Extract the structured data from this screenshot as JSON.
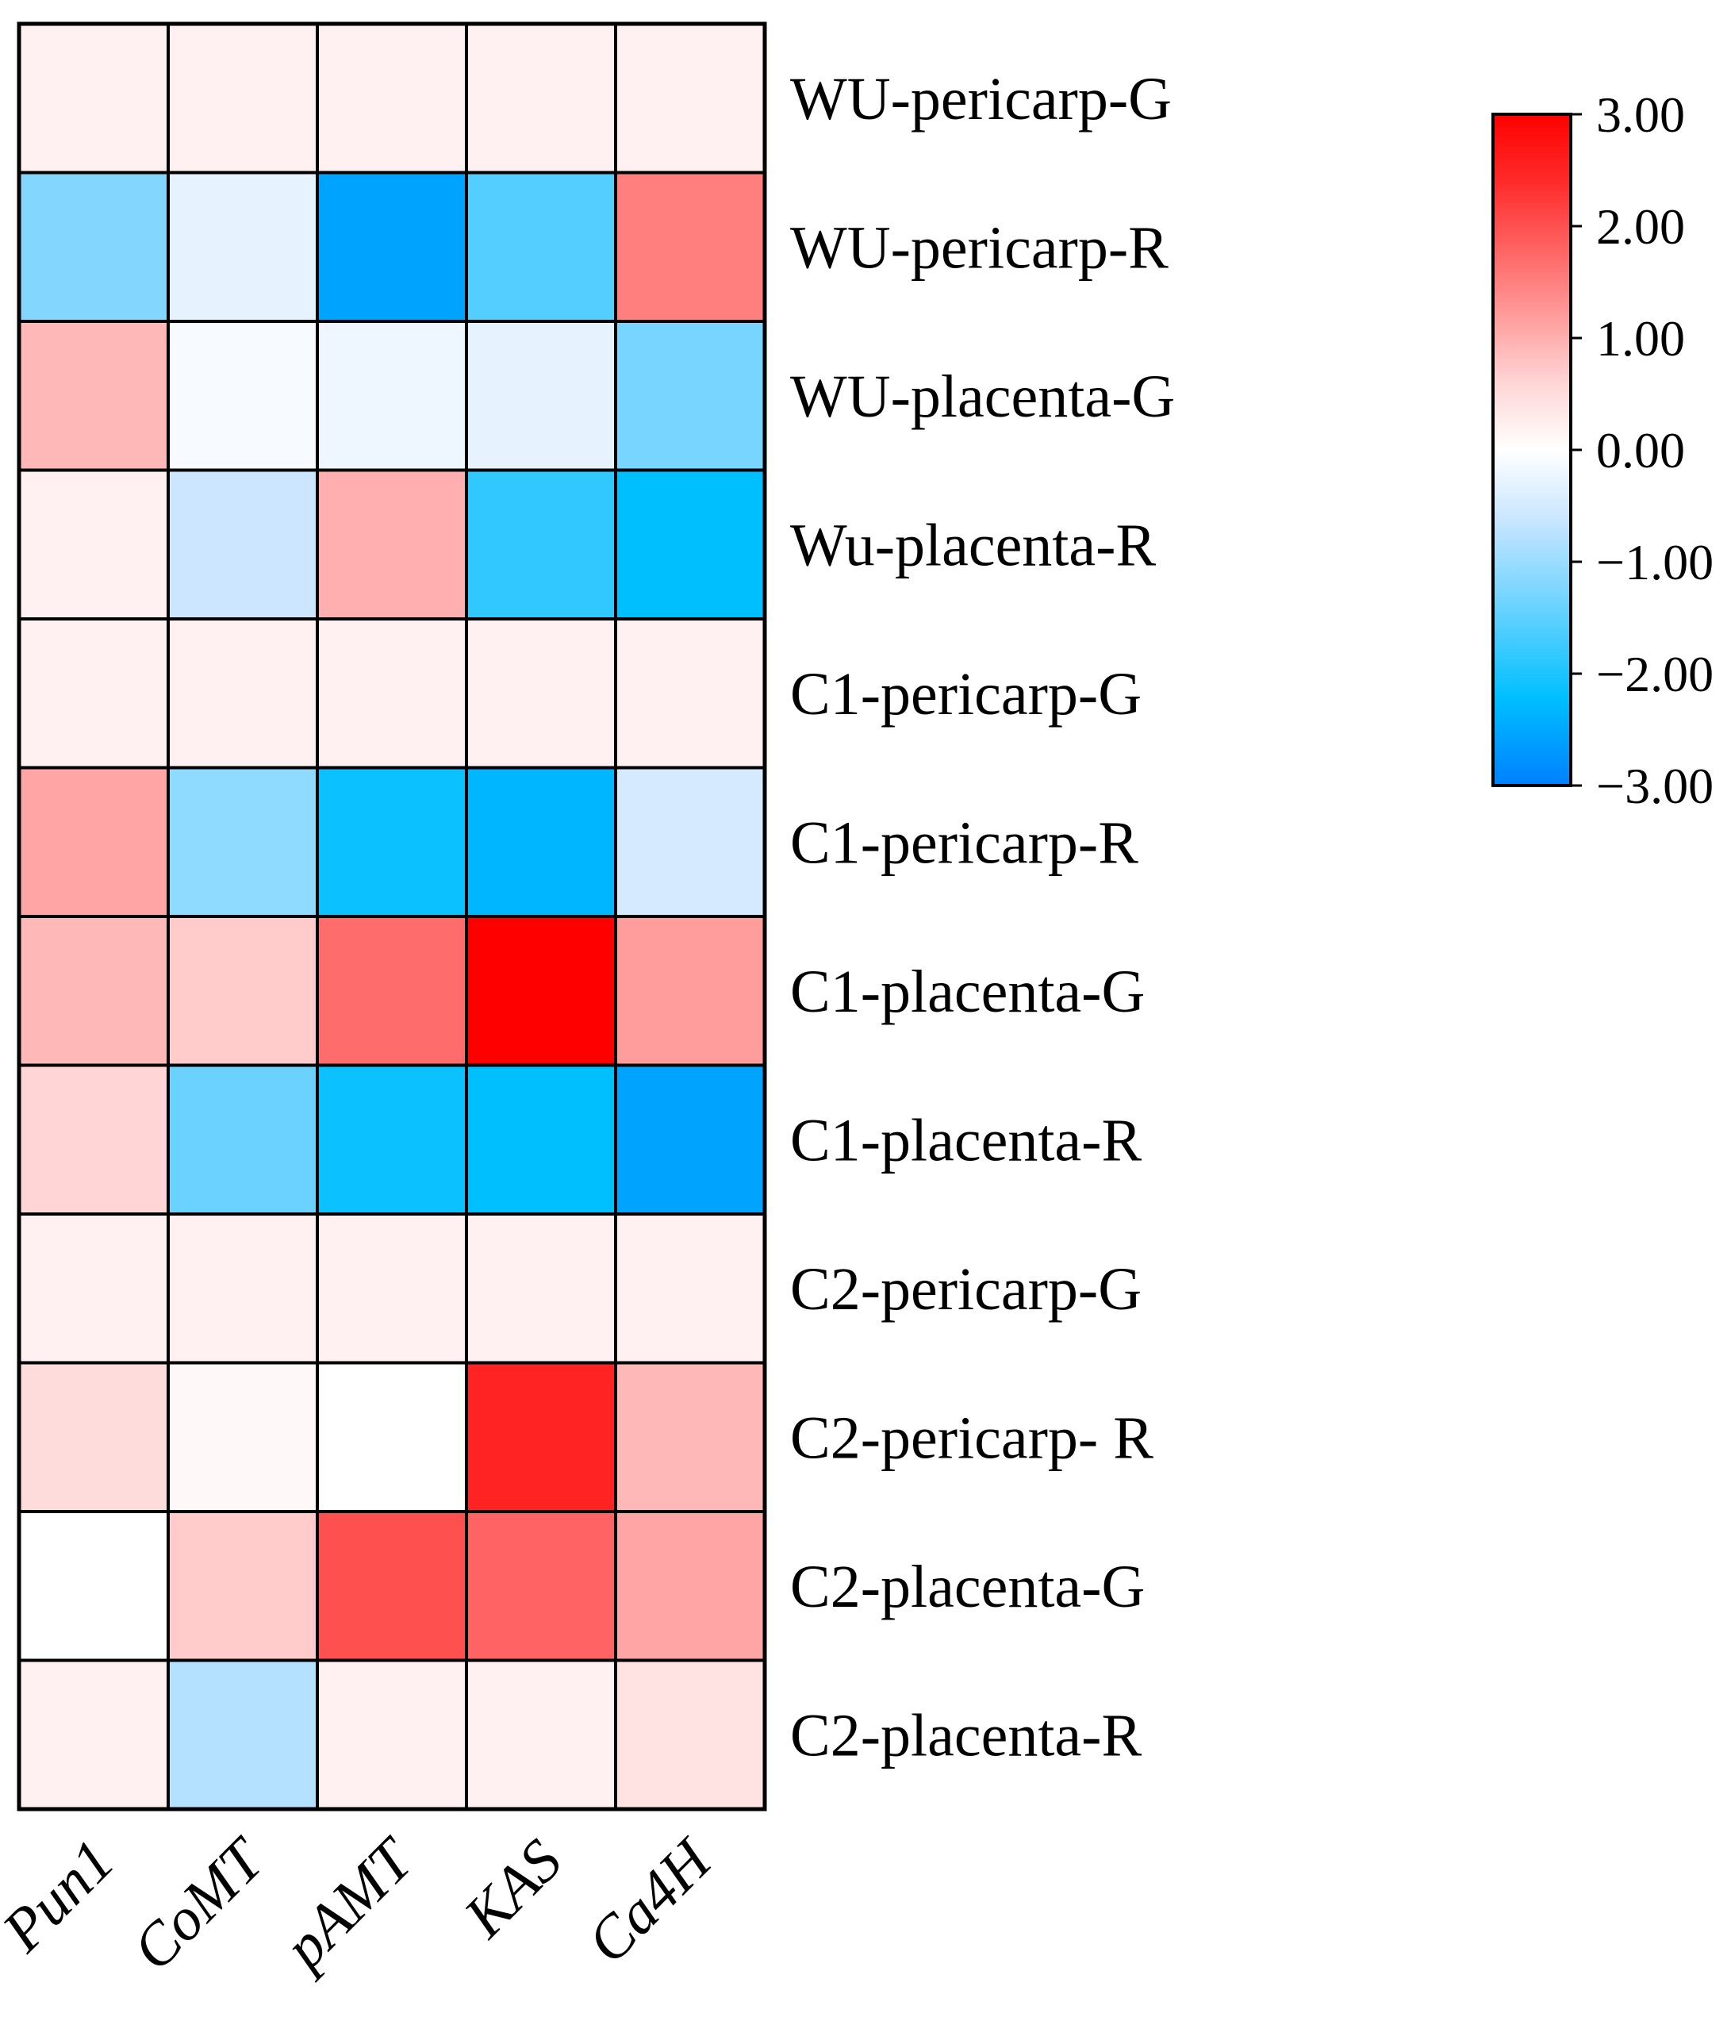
{
  "chart_data": {
    "type": "heatmap",
    "title": "",
    "columns": [
      "Pun1",
      "CoMT",
      "pAMT",
      "KAS",
      "Ca4H"
    ],
    "rows": [
      "WU-pericarp-G",
      "WU-pericarp-R",
      "WU-placenta-G",
      "Wu-placenta-R",
      "C1-pericarp-G",
      "C1-pericarp-R",
      "C1-placenta-G",
      "C1-placenta-R",
      "C2-pericarp-G",
      "C2-pericarp- R",
      "C2-placenta-G",
      "C2-placenta-R"
    ],
    "values": [
      [
        0.2,
        0.2,
        0.2,
        0.2,
        0.2
      ],
      [
        -1.2,
        -0.3,
        -2.6,
        -1.6,
        1.5
      ],
      [
        0.9,
        -0.1,
        -0.2,
        -0.3,
        -1.3
      ],
      [
        0.2,
        -0.6,
        1.0,
        -1.9,
        -2.3
      ],
      [
        0.2,
        0.2,
        0.2,
        0.2,
        0.2
      ],
      [
        1.1,
        -1.1,
        -2.2,
        -2.4,
        -0.5
      ],
      [
        0.9,
        0.7,
        1.7,
        3.0,
        1.2
      ],
      [
        0.6,
        -1.4,
        -2.2,
        -2.3,
        -2.6
      ],
      [
        0.2,
        0.2,
        0.2,
        0.2,
        0.2
      ],
      [
        0.5,
        0.1,
        0.0,
        2.5,
        0.9
      ],
      [
        0.0,
        0.7,
        2.0,
        1.8,
        1.1
      ],
      [
        0.2,
        -0.8,
        0.2,
        0.2,
        0.4
      ]
    ],
    "color_scale": {
      "min": -3,
      "max": 3,
      "low_color": "#0080ff",
      "mid_color": "#ffffff",
      "high_color": "#ff0000",
      "ticks": [
        "3.00",
        "2.00",
        "1.00",
        "0.00",
        "−1.00",
        "−2.00",
        "−3.00"
      ]
    },
    "legend_position": "top-right"
  }
}
